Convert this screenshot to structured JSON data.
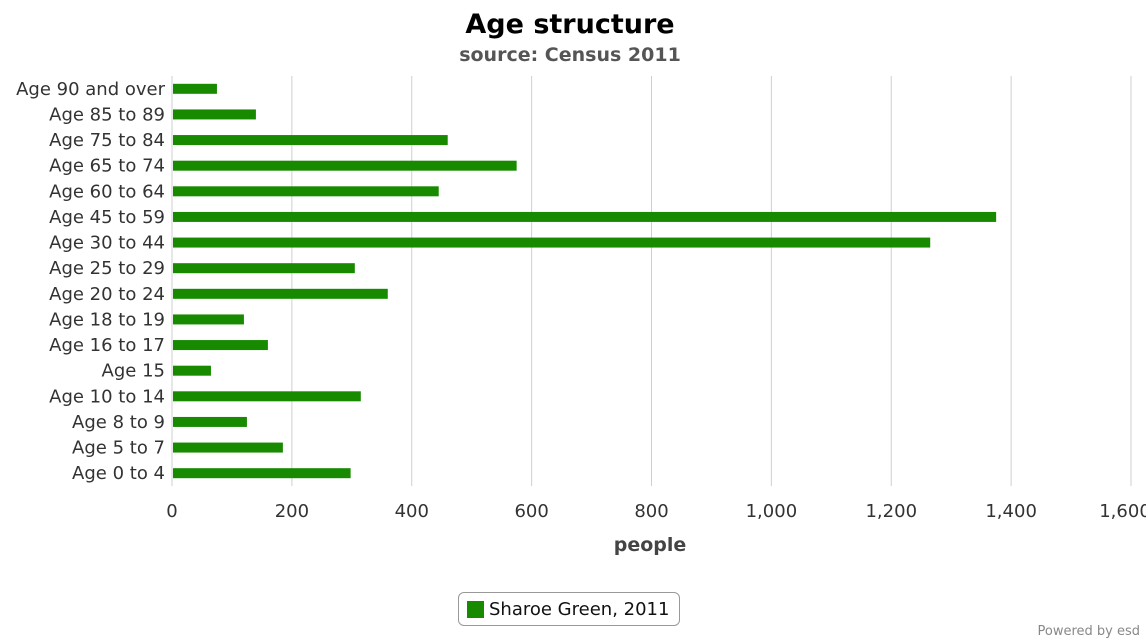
{
  "chart_data": {
    "type": "bar",
    "orientation": "horizontal",
    "title": "Age structure",
    "subtitle": "source: Census 2011",
    "xlabel": "people",
    "ylabel": "",
    "xlim": [
      0,
      1600
    ],
    "xticks": [
      0,
      200,
      400,
      600,
      800,
      1000,
      1200,
      1400,
      1600
    ],
    "xtick_labels": [
      "0",
      "200",
      "400",
      "600",
      "800",
      "1,000",
      "1,200",
      "1,400",
      "1,600"
    ],
    "grid": "vertical",
    "legend_position": "bottom-center",
    "bar_color": "#178a00",
    "categories": [
      "Age 90 and over",
      "Age 85 to 89",
      "Age 75 to 84",
      "Age 65 to 74",
      "Age 60 to 64",
      "Age 45 to 59",
      "Age 30 to 44",
      "Age 25 to 29",
      "Age 20 to 24",
      "Age 18 to 19",
      "Age 16 to 17",
      "Age 15",
      "Age 10 to 14",
      "Age 8 to 9",
      "Age 5 to 7",
      "Age 0 to 4"
    ],
    "series": [
      {
        "name": "Sharoe Green, 2011",
        "values": [
          75,
          140,
          460,
          575,
          445,
          1375,
          1265,
          305,
          360,
          120,
          160,
          65,
          315,
          125,
          185,
          298
        ]
      }
    ]
  },
  "credit": "Powered by esd"
}
